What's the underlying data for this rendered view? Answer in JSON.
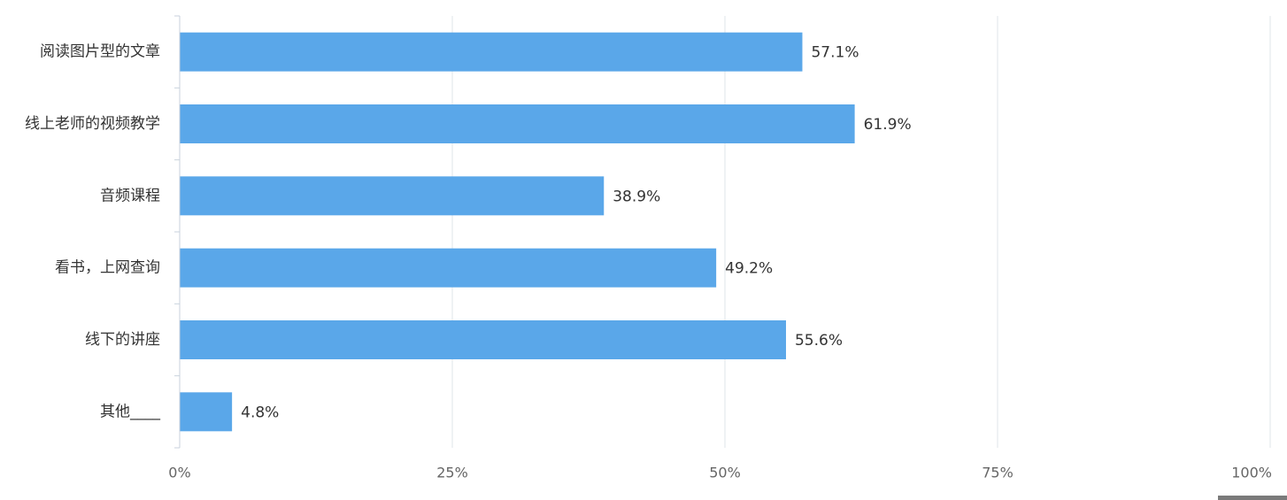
{
  "chart_data": {
    "type": "bar",
    "orientation": "horizontal",
    "categories": [
      "阅读图片型的文章",
      "线上老师的视频教学",
      "音频课程",
      "看书，上网查询",
      "线下的讲座",
      "其他____"
    ],
    "values": [
      57.1,
      61.9,
      38.9,
      49.2,
      55.6,
      4.8
    ],
    "value_labels": [
      "57.1%",
      "61.9%",
      "38.9%",
      "49.2%",
      "55.6%",
      "4.8%"
    ],
    "x_ticks": [
      0,
      25,
      50,
      75,
      100
    ],
    "x_tick_labels": [
      "0%",
      "25%",
      "50%",
      "75%",
      "100%"
    ],
    "xlim": [
      0,
      100
    ],
    "grid": "vertical",
    "legend": "none",
    "colors": {
      "bar": "#5aa7e9",
      "grid": "#dfe4ea",
      "axis": "#c9d2dc"
    }
  }
}
